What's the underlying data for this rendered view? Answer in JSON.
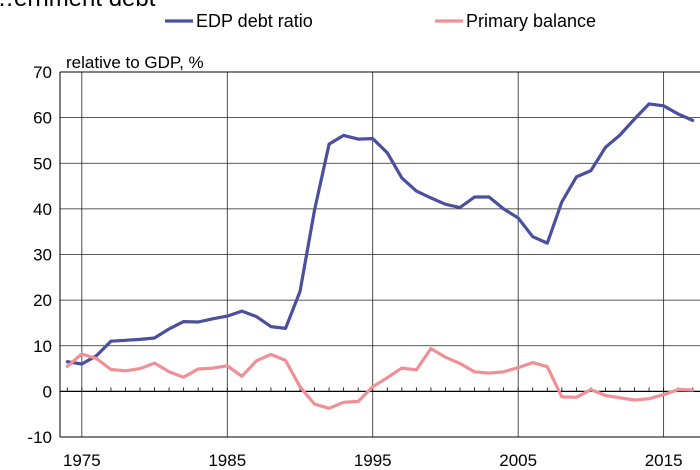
{
  "chart_data": {
    "type": "line",
    "title": "…ernment debt",
    "ylabel": "relative to GDP, %",
    "xlabel": "",
    "xlim": [
      1973.5,
      2017.5
    ],
    "ylim": [
      -10,
      70
    ],
    "yticks": [
      -10,
      0,
      10,
      20,
      30,
      40,
      50,
      60,
      70
    ],
    "xticks": [
      1975,
      1985,
      1995,
      2005,
      2015
    ],
    "grid": true,
    "legend": "top",
    "x": [
      1974,
      1975,
      1976,
      1977,
      1978,
      1979,
      1980,
      1981,
      1982,
      1983,
      1984,
      1985,
      1986,
      1987,
      1988,
      1989,
      1990,
      1991,
      1992,
      1993,
      1994,
      1995,
      1996,
      1997,
      1998,
      1999,
      2000,
      2001,
      2002,
      2003,
      2004,
      2005,
      2006,
      2007,
      2008,
      2009,
      2010,
      2011,
      2012,
      2013,
      2014,
      2015,
      2016,
      2017
    ],
    "series": [
      {
        "name": "EDP debt ratio",
        "color": "#4a4f9e",
        "values": [
          6.5,
          6.0,
          7.8,
          11.0,
          11.2,
          11.4,
          11.7,
          13.7,
          15.3,
          15.2,
          15.9,
          16.5,
          17.6,
          16.4,
          14.2,
          13.8,
          21.9,
          39.7,
          54.2,
          56.1,
          55.3,
          55.4,
          52.3,
          46.8,
          43.9,
          42.4,
          41.0,
          40.3,
          42.6,
          42.6,
          40.0,
          38.0,
          33.9,
          32.5,
          41.5,
          47.0,
          48.4,
          53.5,
          56.2,
          59.7,
          63.0,
          62.6,
          60.8,
          59.4
        ]
      },
      {
        "name": "Primary balance",
        "color": "#f08f95",
        "values": [
          5.5,
          8.2,
          7.2,
          4.8,
          4.5,
          5.0,
          6.2,
          4.3,
          3.1,
          4.9,
          5.1,
          5.6,
          3.3,
          6.7,
          8.1,
          6.8,
          1.0,
          -2.8,
          -3.7,
          -2.4,
          -2.2,
          1.0,
          3.0,
          5.1,
          4.7,
          9.4,
          7.5,
          6.1,
          4.3,
          4.0,
          4.3,
          5.2,
          6.3,
          5.4,
          -1.2,
          -1.3,
          0.4,
          -0.9,
          -1.4,
          -1.9,
          -1.6,
          -0.7,
          0.4,
          0.3
        ]
      }
    ]
  }
}
